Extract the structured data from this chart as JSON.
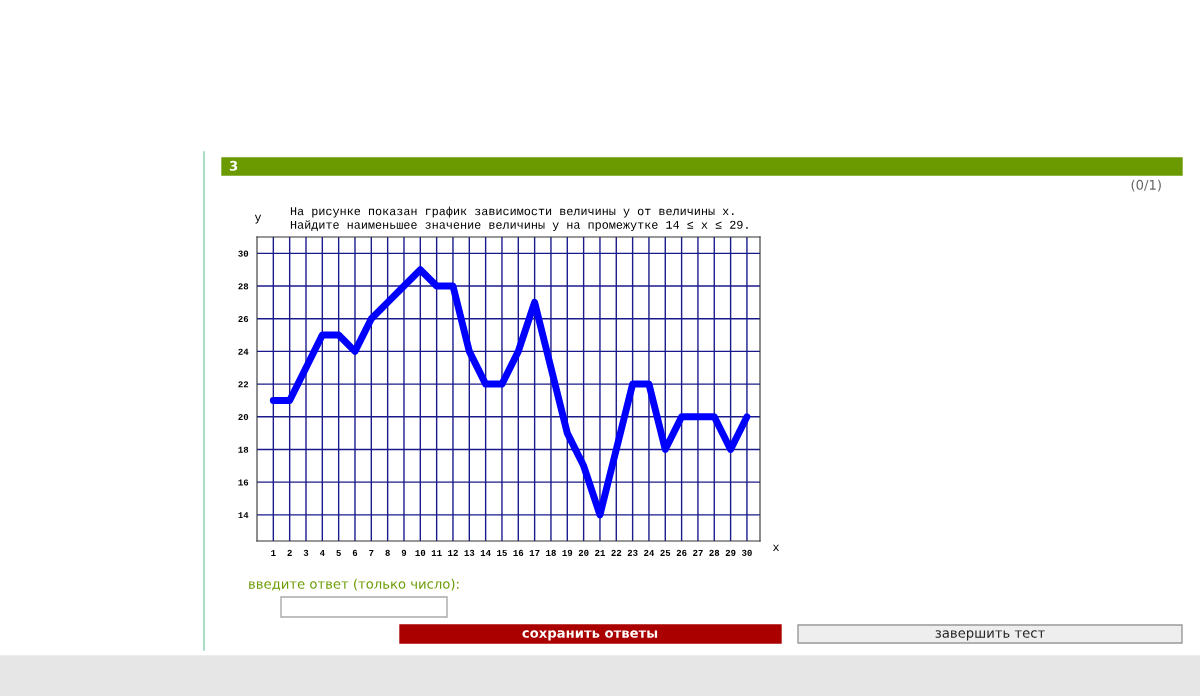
{
  "chart_data": {
    "type": "line",
    "title": "На рисунке показан график зависимости величины у от величины х.\nНайдите наименьшее значение величины у на промежутке 14 ≤ х ≤ 29.",
    "xlabel": "х",
    "ylabel": "у",
    "x": [
      1,
      2,
      3,
      4,
      5,
      6,
      7,
      8,
      9,
      10,
      11,
      12,
      13,
      14,
      15,
      16,
      17,
      18,
      19,
      20,
      21,
      22,
      23,
      24,
      25,
      26,
      27,
      28,
      29,
      30
    ],
    "series": [
      {
        "color": "#0000ff",
        "values": [
          21,
          21,
          23,
          25,
          25,
          24,
          26,
          27,
          28,
          29,
          28,
          28,
          24,
          22,
          22,
          24,
          27,
          23,
          19,
          17,
          14,
          18,
          22,
          22,
          18,
          20,
          20,
          20,
          18,
          20
        ]
      }
    ],
    "xlim": [
      0,
      30.8
    ],
    "ylim": [
      12.4,
      31
    ],
    "xticks": [
      1,
      2,
      3,
      4,
      5,
      6,
      7,
      8,
      9,
      10,
      11,
      12,
      13,
      14,
      15,
      16,
      17,
      18,
      19,
      20,
      21,
      22,
      23,
      24,
      25,
      26,
      27,
      28,
      29,
      30
    ],
    "yticks": [
      14,
      16,
      18,
      20,
      22,
      24,
      26,
      28,
      30
    ],
    "grid": true,
    "marker": "none",
    "line_style": "solid",
    "annotations": [
      "3",
      "(0/1)",
      "введите ответ (только число):",
      "сохранить ответы",
      "завершить тест"
    ]
  }
}
